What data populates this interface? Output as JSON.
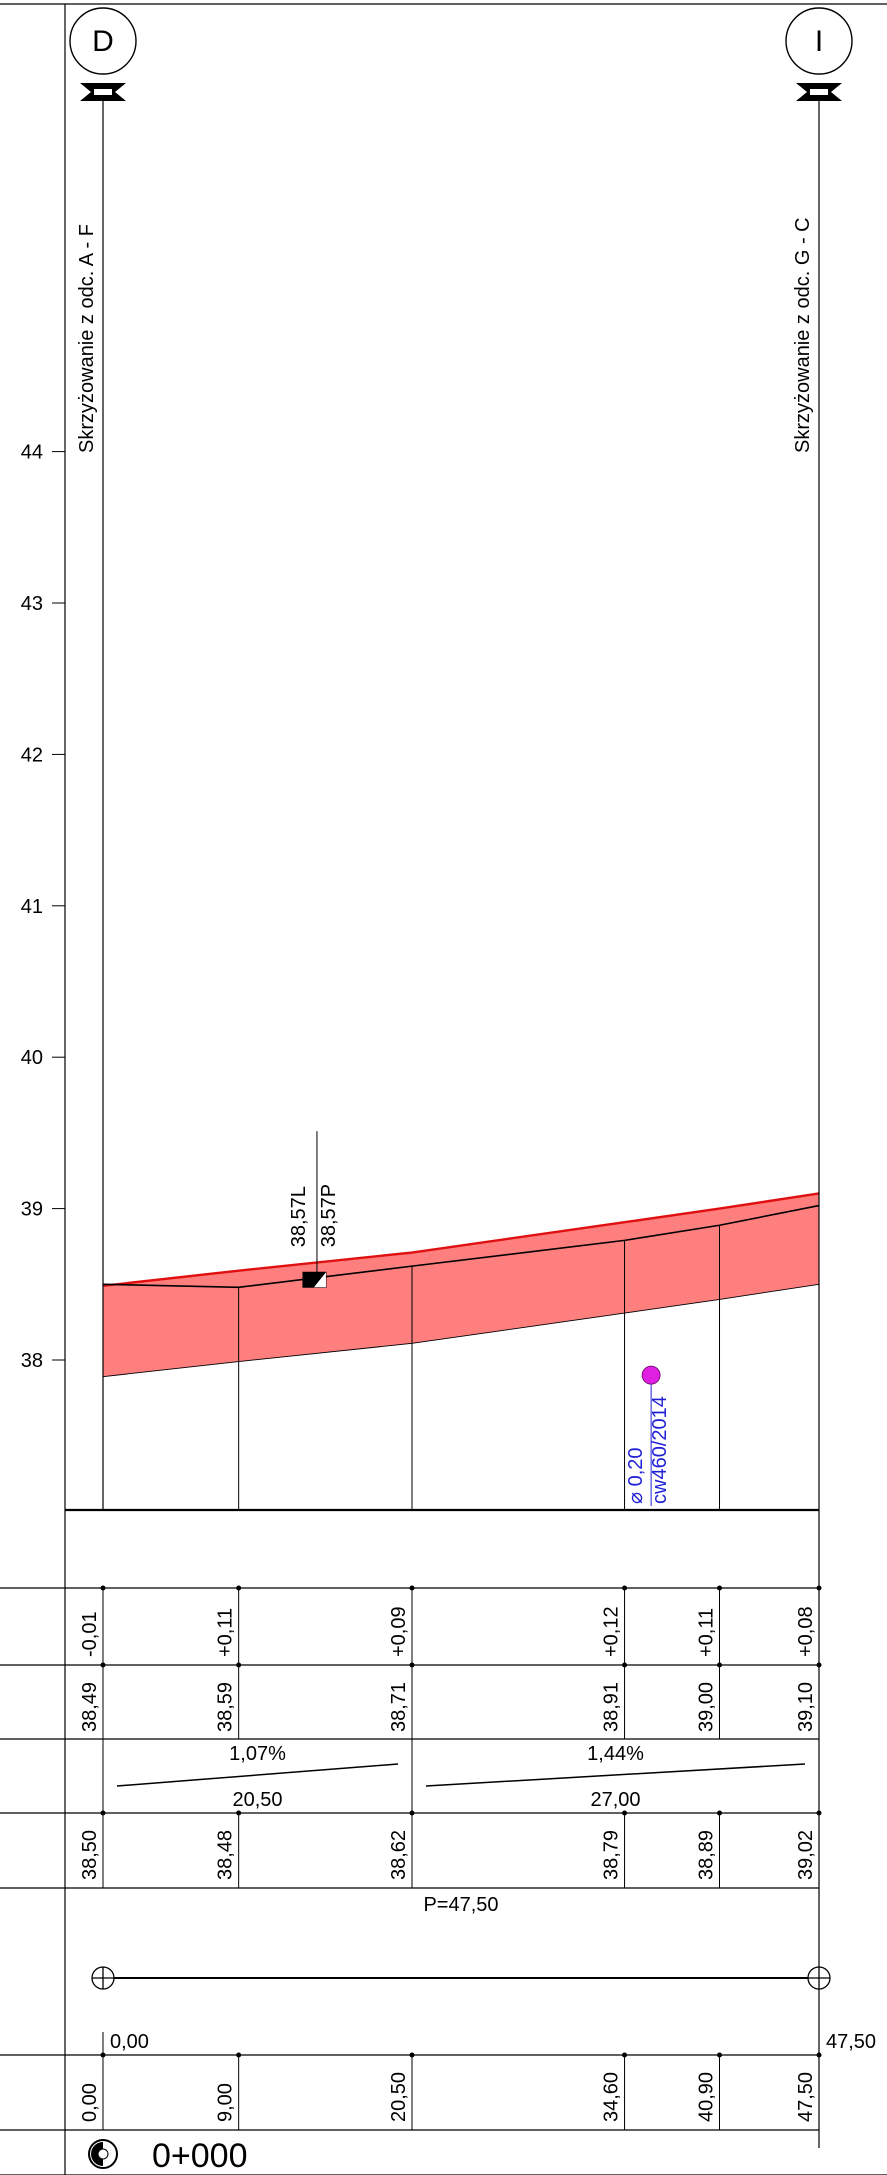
{
  "markers": {
    "left": "D",
    "right": "I"
  },
  "intersections": {
    "left": "Skrzyżowanie z odc. A - F",
    "right": "Skrzyżowanie z odc. G - C"
  },
  "elevation_axis": {
    "ticks": [
      "44",
      "43",
      "42",
      "41",
      "40",
      "39",
      "38"
    ],
    "values": [
      44,
      43,
      42,
      41,
      40,
      39,
      38
    ],
    "min": 37,
    "max": 45
  },
  "stations": [
    0,
    9,
    20.5,
    34.6,
    40.9,
    47.5
  ],
  "design_profile": [
    38.5,
    38.48,
    38.62,
    38.79,
    38.89,
    39.02
  ],
  "surface_top": [
    38.49,
    38.59,
    38.71,
    38.91,
    39.0,
    39.1
  ],
  "layer_bottom": [
    37.89,
    37.99,
    38.11,
    38.31,
    38.4,
    38.5
  ],
  "elevation_label": {
    "line1": "38,57L",
    "line2": "38,57P",
    "station": 13,
    "elevation": 38.5
  },
  "utility": {
    "diameter": "⌀ 0,20",
    "code": "cw460/2014",
    "station": 35.5,
    "elevation": 37.9,
    "color": "#e020e0"
  },
  "colors": {
    "fill": "#ff7f7f",
    "surface_line": "#e01010"
  },
  "rows": {
    "differences": [
      "-0,01",
      "+0,11",
      "+0,09",
      "+0,12",
      "+0,11",
      "+0,08"
    ],
    "surface_elevations": [
      "38,49",
      "38,59",
      "38,71",
      "38,91",
      "39,00",
      "39,10"
    ],
    "slopes": [
      {
        "percent": "1,07%",
        "length": "20,50"
      },
      {
        "percent": "1,44%",
        "length": "27,00"
      }
    ],
    "design_elevations": [
      "38,50",
      "38,48",
      "38,62",
      "38,79",
      "38,89",
      "39,02"
    ],
    "plan": {
      "label": "P=47,50"
    },
    "distances": [
      "0,00",
      "9,00",
      "20,50",
      "34,60",
      "40,90",
      "47,50"
    ],
    "distance_start": "0,00",
    "distance_end": "47,50"
  },
  "chainage": {
    "label": "0+000"
  }
}
